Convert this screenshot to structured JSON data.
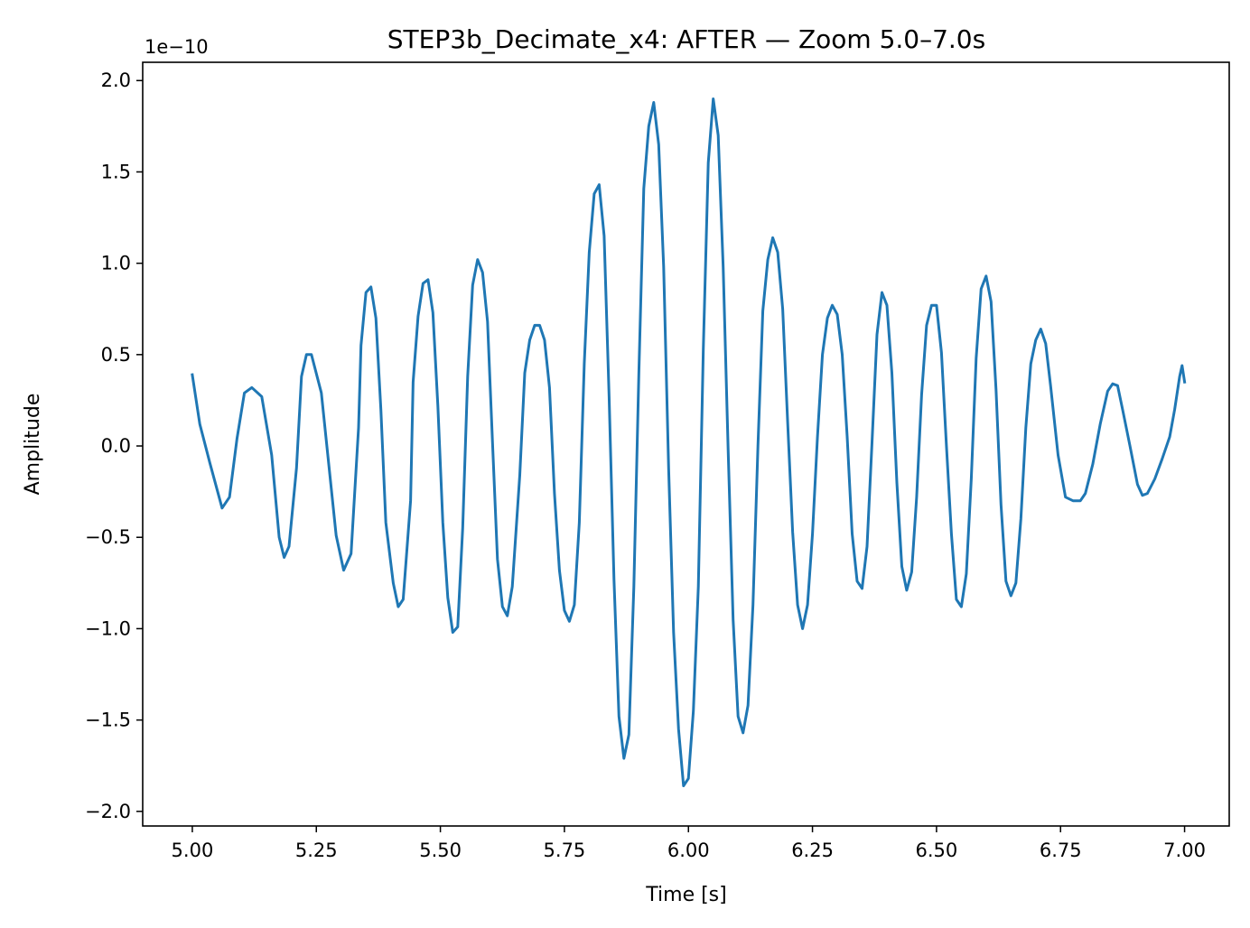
{
  "chart_data": {
    "type": "line",
    "title": "STEP3b_Decimate_x4: AFTER — Zoom 5.0–7.0s",
    "xlabel": "Time [s]",
    "ylabel": "Amplitude",
    "offset_label": "1e−10",
    "xlim": [
      4.9,
      7.09
    ],
    "ylim": [
      -2.08,
      2.1
    ],
    "x_ticks": [
      5.0,
      5.25,
      5.5,
      5.75,
      6.0,
      6.25,
      6.5,
      6.75,
      7.0
    ],
    "x_tick_labels": [
      "5.00",
      "5.25",
      "5.50",
      "5.75",
      "6.00",
      "6.25",
      "6.50",
      "6.75",
      "7.00"
    ],
    "y_ticks": [
      -2.0,
      -1.5,
      -1.0,
      -0.5,
      0.0,
      0.5,
      1.0,
      1.5,
      2.0
    ],
    "y_tick_labels": [
      "−2.0",
      "−1.5",
      "−1.0",
      "−0.5",
      "0.0",
      "0.5",
      "1.0",
      "1.5",
      "2.0"
    ],
    "grid": false,
    "line_color": "#1f77b4",
    "series": [
      {
        "points": [
          [
            5.0,
            0.39
          ],
          [
            5.015,
            0.12
          ],
          [
            5.035,
            -0.09
          ],
          [
            5.06,
            -0.34
          ],
          [
            5.075,
            -0.28
          ],
          [
            5.09,
            0.04
          ],
          [
            5.105,
            0.29
          ],
          [
            5.12,
            0.32
          ],
          [
            5.14,
            0.27
          ],
          [
            5.16,
            -0.05
          ],
          [
            5.175,
            -0.5
          ],
          [
            5.185,
            -0.61
          ],
          [
            5.195,
            -0.55
          ],
          [
            5.21,
            -0.12
          ],
          [
            5.22,
            0.38
          ],
          [
            5.23,
            0.5
          ],
          [
            5.24,
            0.5
          ],
          [
            5.26,
            0.29
          ],
          [
            5.275,
            -0.1
          ],
          [
            5.29,
            -0.49
          ],
          [
            5.305,
            -0.68
          ],
          [
            5.32,
            -0.59
          ],
          [
            5.335,
            0.1
          ],
          [
            5.34,
            0.55
          ],
          [
            5.35,
            0.84
          ],
          [
            5.36,
            0.87
          ],
          [
            5.37,
            0.7
          ],
          [
            5.38,
            0.2
          ],
          [
            5.39,
            -0.42
          ],
          [
            5.405,
            -0.75
          ],
          [
            5.415,
            -0.88
          ],
          [
            5.425,
            -0.84
          ],
          [
            5.44,
            -0.3
          ],
          [
            5.445,
            0.35
          ],
          [
            5.455,
            0.71
          ],
          [
            5.465,
            0.89
          ],
          [
            5.475,
            0.91
          ],
          [
            5.485,
            0.73
          ],
          [
            5.495,
            0.22
          ],
          [
            5.505,
            -0.42
          ],
          [
            5.515,
            -0.83
          ],
          [
            5.525,
            -1.02
          ],
          [
            5.535,
            -0.99
          ],
          [
            5.545,
            -0.45
          ],
          [
            5.555,
            0.38
          ],
          [
            5.565,
            0.88
          ],
          [
            5.575,
            1.02
          ],
          [
            5.585,
            0.95
          ],
          [
            5.595,
            0.68
          ],
          [
            5.605,
            0.02
          ],
          [
            5.615,
            -0.62
          ],
          [
            5.625,
            -0.88
          ],
          [
            5.635,
            -0.93
          ],
          [
            5.645,
            -0.77
          ],
          [
            5.66,
            -0.16
          ],
          [
            5.67,
            0.4
          ],
          [
            5.68,
            0.58
          ],
          [
            5.69,
            0.66
          ],
          [
            5.7,
            0.66
          ],
          [
            5.71,
            0.58
          ],
          [
            5.72,
            0.32
          ],
          [
            5.73,
            -0.26
          ],
          [
            5.74,
            -0.68
          ],
          [
            5.75,
            -0.9
          ],
          [
            5.76,
            -0.96
          ],
          [
            5.77,
            -0.87
          ],
          [
            5.78,
            -0.42
          ],
          [
            5.79,
            0.45
          ],
          [
            5.8,
            1.06
          ],
          [
            5.81,
            1.38
          ],
          [
            5.82,
            1.43
          ],
          [
            5.83,
            1.15
          ],
          [
            5.84,
            0.27
          ],
          [
            5.85,
            -0.73
          ],
          [
            5.86,
            -1.48
          ],
          [
            5.87,
            -1.71
          ],
          [
            5.88,
            -1.58
          ],
          [
            5.89,
            -0.77
          ],
          [
            5.9,
            0.39
          ],
          [
            5.91,
            1.41
          ],
          [
            5.92,
            1.75
          ],
          [
            5.93,
            1.88
          ],
          [
            5.94,
            1.65
          ],
          [
            5.95,
            0.98
          ],
          [
            5.96,
            -0.12
          ],
          [
            5.97,
            -1.02
          ],
          [
            5.98,
            -1.55
          ],
          [
            5.99,
            -1.86
          ],
          [
            6.0,
            -1.82
          ],
          [
            6.01,
            -1.45
          ],
          [
            6.02,
            -0.77
          ],
          [
            6.03,
            0.53
          ],
          [
            6.04,
            1.55
          ],
          [
            6.05,
            1.9
          ],
          [
            6.06,
            1.7
          ],
          [
            6.07,
            0.98
          ],
          [
            6.08,
            -0.02
          ],
          [
            6.09,
            -0.95
          ],
          [
            6.1,
            -1.48
          ],
          [
            6.11,
            -1.57
          ],
          [
            6.12,
            -1.42
          ],
          [
            6.13,
            -0.87
          ],
          [
            6.14,
            0.0
          ],
          [
            6.15,
            0.74
          ],
          [
            6.16,
            1.02
          ],
          [
            6.17,
            1.14
          ],
          [
            6.18,
            1.06
          ],
          [
            6.19,
            0.75
          ],
          [
            6.2,
            0.13
          ],
          [
            6.21,
            -0.47
          ],
          [
            6.22,
            -0.87
          ],
          [
            6.23,
            -1.0
          ],
          [
            6.24,
            -0.87
          ],
          [
            6.25,
            -0.48
          ],
          [
            6.26,
            0.05
          ],
          [
            6.27,
            0.5
          ],
          [
            6.28,
            0.7
          ],
          [
            6.29,
            0.77
          ],
          [
            6.3,
            0.72
          ],
          [
            6.31,
            0.5
          ],
          [
            6.32,
            0.05
          ],
          [
            6.33,
            -0.48
          ],
          [
            6.34,
            -0.74
          ],
          [
            6.35,
            -0.78
          ],
          [
            6.36,
            -0.55
          ],
          [
            6.37,
            0.02
          ],
          [
            6.38,
            0.61
          ],
          [
            6.39,
            0.84
          ],
          [
            6.4,
            0.77
          ],
          [
            6.41,
            0.4
          ],
          [
            6.42,
            -0.2
          ],
          [
            6.43,
            -0.66
          ],
          [
            6.44,
            -0.79
          ],
          [
            6.45,
            -0.69
          ],
          [
            6.46,
            -0.28
          ],
          [
            6.47,
            0.28
          ],
          [
            6.48,
            0.66
          ],
          [
            6.49,
            0.77
          ],
          [
            6.5,
            0.77
          ],
          [
            6.51,
            0.51
          ],
          [
            6.52,
            0.0
          ],
          [
            6.53,
            -0.48
          ],
          [
            6.54,
            -0.84
          ],
          [
            6.55,
            -0.88
          ],
          [
            6.56,
            -0.7
          ],
          [
            6.57,
            -0.18
          ],
          [
            6.58,
            0.48
          ],
          [
            6.59,
            0.86
          ],
          [
            6.6,
            0.93
          ],
          [
            6.61,
            0.79
          ],
          [
            6.62,
            0.31
          ],
          [
            6.63,
            -0.32
          ],
          [
            6.64,
            -0.74
          ],
          [
            6.65,
            -0.82
          ],
          [
            6.66,
            -0.75
          ],
          [
            6.67,
            -0.4
          ],
          [
            6.68,
            0.1
          ],
          [
            6.69,
            0.45
          ],
          [
            6.7,
            0.58
          ],
          [
            6.71,
            0.64
          ],
          [
            6.72,
            0.56
          ],
          [
            6.73,
            0.33
          ],
          [
            6.745,
            -0.05
          ],
          [
            6.76,
            -0.28
          ],
          [
            6.775,
            -0.3
          ],
          [
            6.79,
            -0.3
          ],
          [
            6.8,
            -0.26
          ],
          [
            6.815,
            -0.1
          ],
          [
            6.83,
            0.12
          ],
          [
            6.845,
            0.3
          ],
          [
            6.855,
            0.34
          ],
          [
            6.865,
            0.33
          ],
          [
            6.875,
            0.2
          ],
          [
            6.89,
            0.0
          ],
          [
            6.905,
            -0.21
          ],
          [
            6.915,
            -0.27
          ],
          [
            6.925,
            -0.26
          ],
          [
            6.94,
            -0.18
          ],
          [
            6.955,
            -0.07
          ],
          [
            6.97,
            0.05
          ],
          [
            6.98,
            0.2
          ],
          [
            6.99,
            0.38
          ],
          [
            6.995,
            0.44
          ],
          [
            7.0,
            0.35
          ]
        ]
      }
    ]
  }
}
